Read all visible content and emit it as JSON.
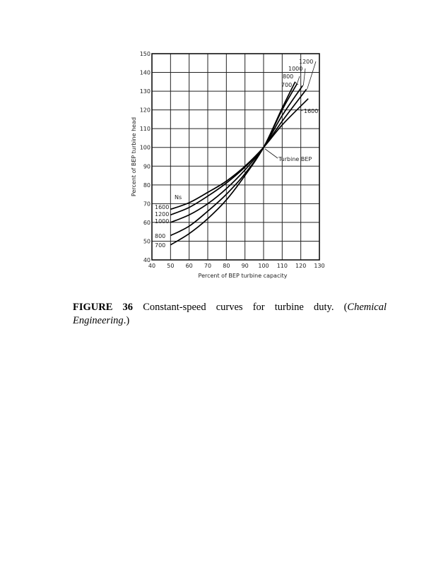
{
  "chart_data": {
    "type": "line",
    "xlabel": "Percent of BEP turbine capacity",
    "ylabel": "Percent of BEP turbine head",
    "xlim": [
      40,
      130
    ],
    "ylim": [
      40,
      150
    ],
    "x_ticks": [
      "40",
      "50",
      "60",
      "70",
      "80",
      "90",
      "100",
      "110",
      "120",
      "130"
    ],
    "y_ticks": [
      "40",
      "50",
      "60",
      "70",
      "80",
      "90",
      "100",
      "110",
      "120",
      "130",
      "140",
      "150"
    ],
    "grid": true,
    "legend_title": "Ns",
    "series": [
      {
        "name": "1600",
        "points": [
          [
            50,
            67
          ],
          [
            60,
            70.5
          ],
          [
            70,
            76
          ],
          [
            80,
            82
          ],
          [
            90,
            90
          ],
          [
            100,
            100
          ],
          [
            110,
            112
          ],
          [
            124,
            126
          ]
        ]
      },
      {
        "name": "1200",
        "points": [
          [
            50,
            64
          ],
          [
            60,
            68
          ],
          [
            70,
            74
          ],
          [
            80,
            81
          ],
          [
            90,
            89.5
          ],
          [
            100,
            100
          ],
          [
            110,
            114
          ],
          [
            123,
            131
          ]
        ]
      },
      {
        "name": "1000",
        "points": [
          [
            50,
            60
          ],
          [
            60,
            64
          ],
          [
            70,
            70
          ],
          [
            80,
            78
          ],
          [
            90,
            88
          ],
          [
            100,
            100
          ],
          [
            110,
            117
          ],
          [
            121,
            133
          ]
        ]
      },
      {
        "name": "800",
        "points": [
          [
            50,
            53
          ],
          [
            60,
            58
          ],
          [
            70,
            66
          ],
          [
            80,
            75
          ],
          [
            90,
            86
          ],
          [
            100,
            100
          ],
          [
            110,
            120
          ],
          [
            118,
            134
          ]
        ]
      },
      {
        "name": "700",
        "points": [
          [
            50,
            48
          ],
          [
            60,
            54
          ],
          [
            70,
            62
          ],
          [
            80,
            72
          ],
          [
            90,
            85
          ],
          [
            100,
            100
          ],
          [
            110,
            121
          ],
          [
            117,
            135
          ]
        ]
      }
    ],
    "annotations": {
      "bep": "Turbine BEP",
      "left_labels": [
        "1600",
        "1200",
        "1000",
        "800",
        "700"
      ],
      "right_labels": [
        "1200",
        "1000",
        "800",
        "700",
        "1600"
      ]
    }
  },
  "caption": {
    "label": "FIGURE 36",
    "text": " Constant-speed curves for turbine duty. (",
    "source": "Chemical Engineering",
    "end": ".)"
  }
}
